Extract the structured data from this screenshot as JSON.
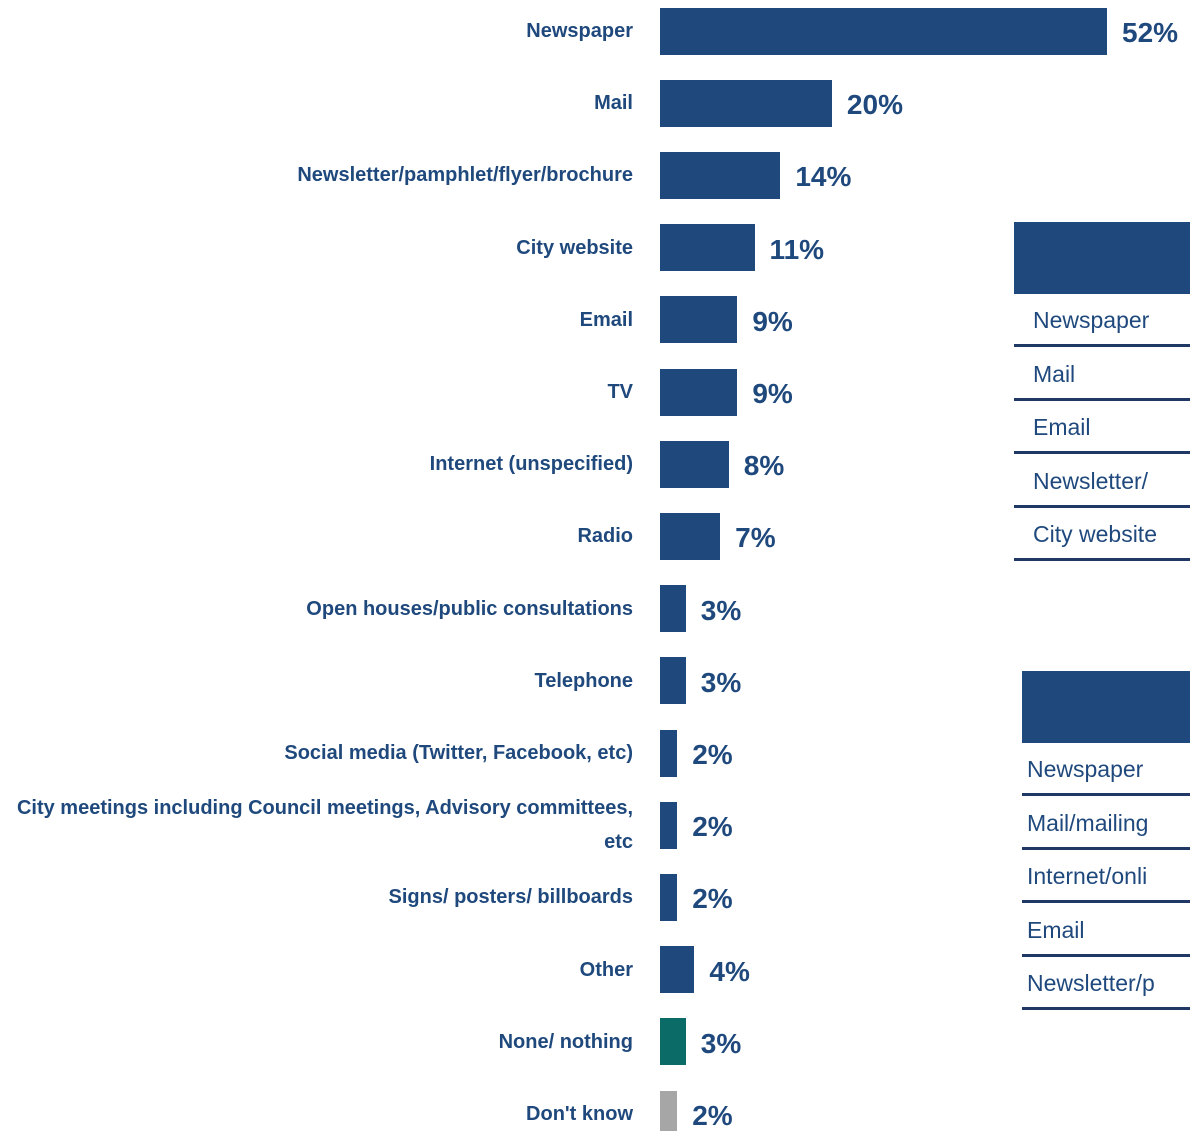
{
  "chart_data": {
    "type": "bar",
    "orientation": "horizontal",
    "categories": [
      "Newspaper",
      "Mail",
      "Newsletter/pamphlet/flyer/brochure",
      "City website",
      "Email",
      "TV",
      "Internet (unspecified)",
      "Radio",
      "Open houses/public consultations",
      "Telephone",
      "Social media (Twitter, Facebook, etc)",
      "City meetings including Council meetings, Advisory committees, etc",
      "Signs/ posters/ billboards",
      "Other",
      "None/ nothing",
      "Don't know"
    ],
    "values": [
      52,
      20,
      14,
      11,
      9,
      9,
      8,
      7,
      3,
      3,
      2,
      2,
      2,
      4,
      3,
      2
    ],
    "value_labels": [
      "52%",
      "20%",
      "14%",
      "11%",
      "9%",
      "9%",
      "8%",
      "7%",
      "3%",
      "3%",
      "2%",
      "2%",
      "2%",
      "4%",
      "3%",
      "2%"
    ],
    "colors": [
      "#1f497d",
      "#1f497d",
      "#1f497d",
      "#1f497d",
      "#1f497d",
      "#1f497d",
      "#1f497d",
      "#1f497d",
      "#1f497d",
      "#1f497d",
      "#1f497d",
      "#1f497d",
      "#1f497d",
      "#1f497d",
      "#0b6b66",
      "#a6a6a6"
    ]
  },
  "tables": [
    {
      "rows": [
        "Newspaper",
        "Mail",
        "Email",
        "Newsletter/",
        "City website"
      ]
    },
    {
      "rows": [
        "Newspaper",
        "Mail/mailing",
        "Internet/onli",
        "Email",
        "Newsletter/p"
      ]
    }
  ]
}
